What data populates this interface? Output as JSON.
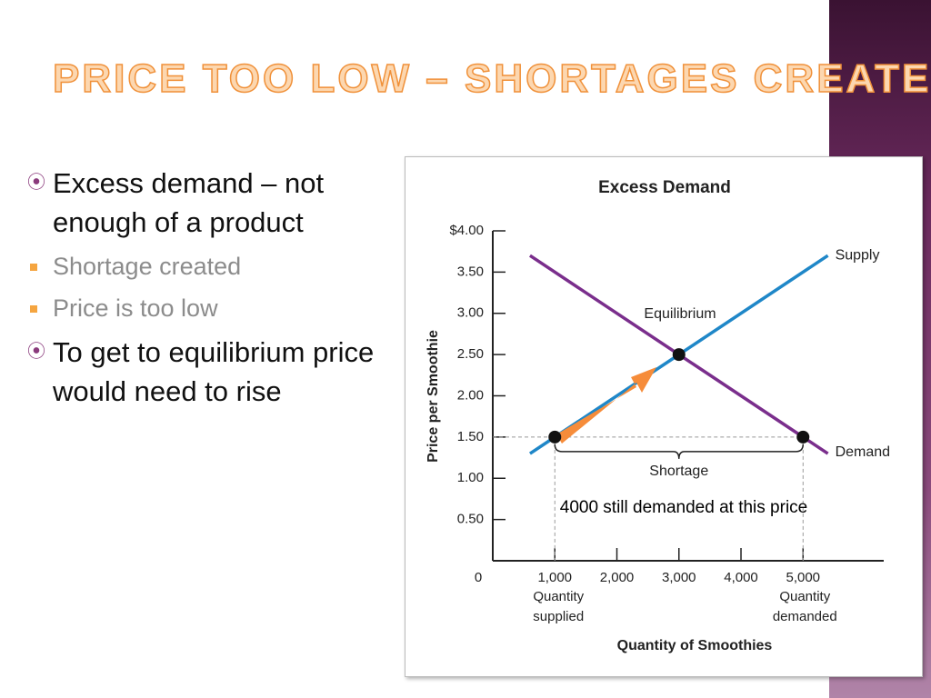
{
  "title": "PRICE TOO LOW – SHORTAGES CREATED",
  "bullets": [
    {
      "text": "Excess demand – not enough of a product",
      "sub": [
        "Shortage created",
        "Price is too low"
      ]
    },
    {
      "text": "To get to equilibrium price would need to rise"
    }
  ],
  "chart_data": {
    "type": "line",
    "title": "Excess Demand",
    "x_label": "Quantity of Smoothies",
    "y_label": "Price per Smoothie",
    "xlim": [
      0,
      6300
    ],
    "ylim": [
      0,
      4
    ],
    "xticks": [
      0,
      {
        "value": 1000,
        "label": "1,000"
      },
      {
        "value": 2000,
        "label": "2,000"
      },
      {
        "value": 3000,
        "label": "3,000"
      },
      {
        "value": 4000,
        "label": "4,000"
      },
      {
        "value": 5000,
        "label": "5,000"
      }
    ],
    "yticks": [
      {
        "value": 0.5,
        "label": "0.50"
      },
      {
        "value": 1,
        "label": "1.00"
      },
      {
        "value": 1.5,
        "label": "1.50"
      },
      {
        "value": 2,
        "label": "2.00"
      },
      {
        "value": 2.5,
        "label": "2.50"
      },
      {
        "value": 3,
        "label": "3.00"
      },
      {
        "value": 3.5,
        "label": "3.50"
      },
      {
        "value": 4,
        "label": "$4.00"
      }
    ],
    "series": [
      {
        "name": "Supply",
        "color": "#1f87c8",
        "x": [
          600,
          1000,
          3000,
          5400
        ],
        "values": [
          1.3,
          1.5,
          2.5,
          3.7
        ]
      },
      {
        "name": "Demand",
        "color": "#7a2e8c",
        "x": [
          600,
          3000,
          5000,
          5400
        ],
        "values": [
          3.7,
          2.5,
          1.5,
          1.3
        ]
      }
    ],
    "points": {
      "x": [
        1000,
        3000,
        5000
      ],
      "values": [
        1.5,
        2.5,
        1.5
      ]
    },
    "equilibrium_label": "Equilibrium",
    "shortage_label": "Shortage",
    "supplied_note": [
      "Quantity",
      "supplied"
    ],
    "demanded_note": [
      "Quantity",
      "demanded"
    ],
    "annotation": "4000 still demanded at this price"
  }
}
